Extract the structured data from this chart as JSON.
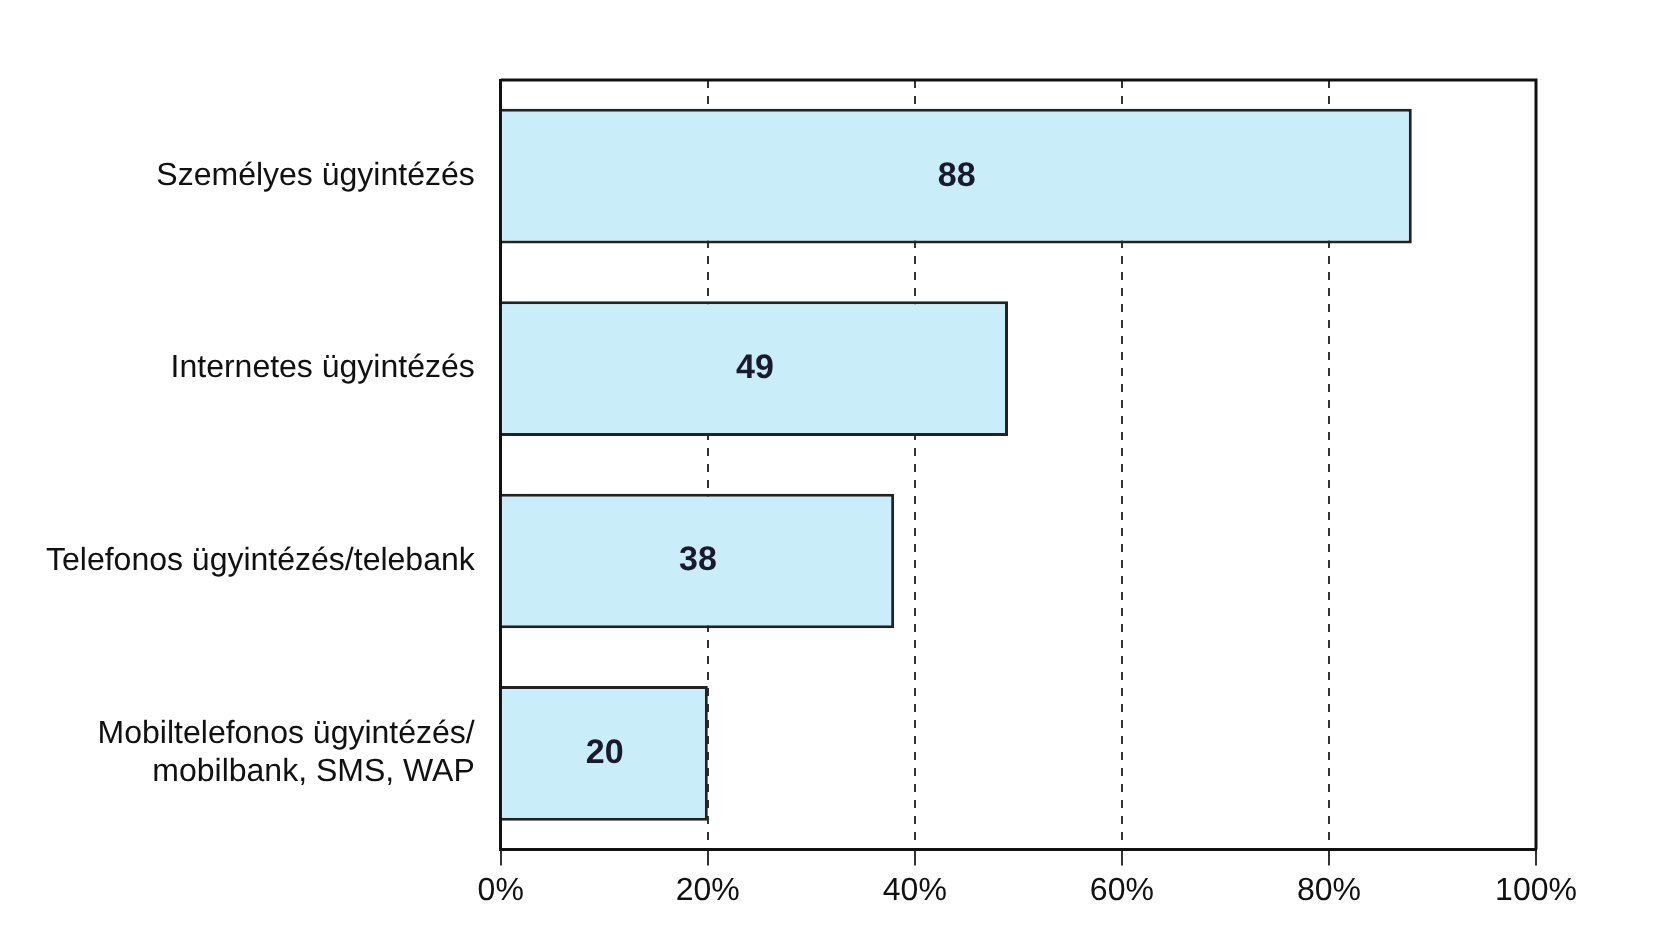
{
  "chart_data": {
    "type": "bar",
    "orientation": "horizontal",
    "categories": [
      "Személyes ügyintézés",
      "Internetes ügyintézés",
      "Telefonos ügyintézés/telebank",
      "Mobiltelefonos ügyintézés/ mobilbank, SMS, WAP"
    ],
    "values": [
      88,
      49,
      38,
      20
    ],
    "color": "#c9eef9",
    "xlim": [
      0,
      100
    ],
    "xticks": [
      {
        "value": 0,
        "label": "0%"
      },
      {
        "value": 20,
        "label": "20%"
      },
      {
        "value": 40,
        "label": "40%"
      },
      {
        "value": 60,
        "label": "60%"
      },
      {
        "value": 80,
        "label": "80%"
      },
      {
        "value": 100,
        "label": "100%"
      }
    ],
    "grid": "x",
    "data_labels": true,
    "legend": false
  }
}
